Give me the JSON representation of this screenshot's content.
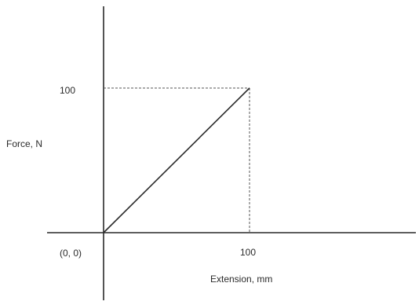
{
  "chart_data": {
    "type": "line",
    "title": "",
    "xlabel": "Extension, mm",
    "ylabel": "Force, N",
    "origin_label": "(0, 0)",
    "x": [
      0,
      100
    ],
    "series": [
      {
        "values": [
          0,
          100
        ]
      }
    ],
    "x_ticks": [
      100
    ],
    "y_ticks": [
      100
    ],
    "x_tick_labels": [
      "100"
    ],
    "y_tick_labels": [
      "100"
    ],
    "xlim": [
      0,
      215
    ],
    "ylim": [
      0,
      100
    ],
    "guide_lines": "dashed from end point (100, 100) to both axes",
    "grid": false,
    "legend": "none",
    "colors": {
      "axis": "#2a2a2a",
      "line": "#2a2a2a",
      "guide": "#555555"
    }
  }
}
